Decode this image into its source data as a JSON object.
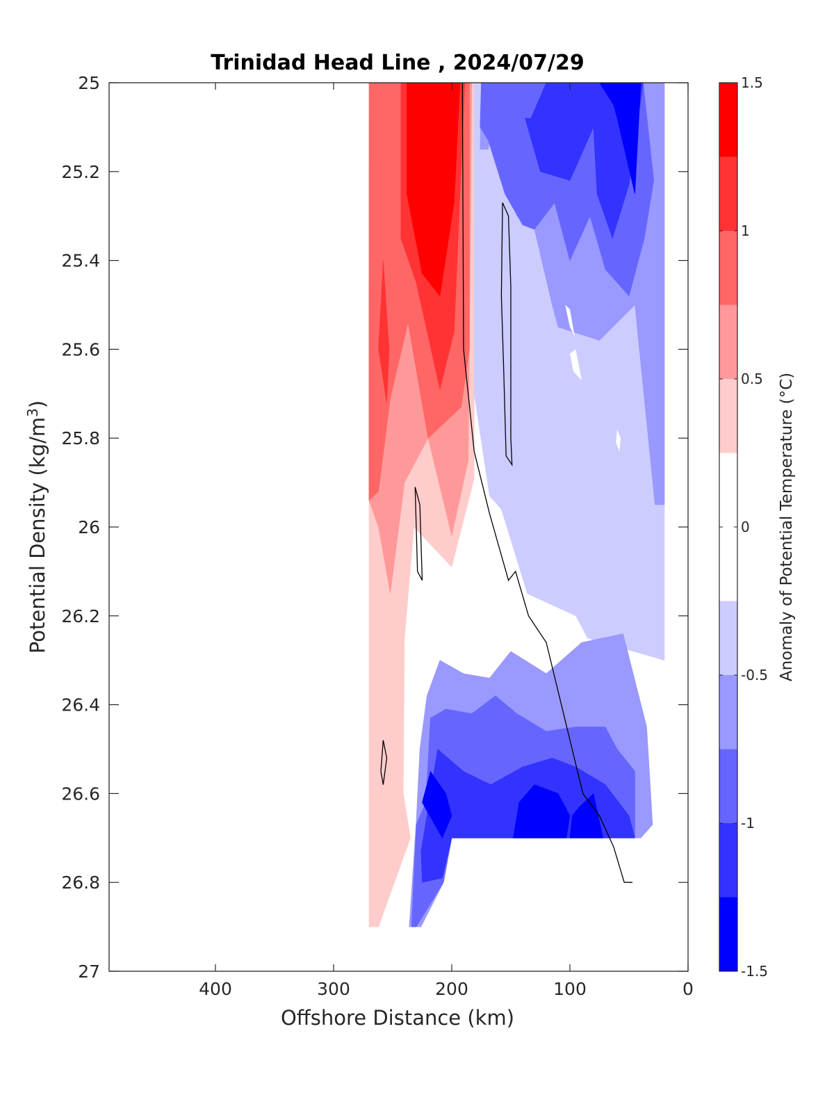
{
  "chart_data": {
    "type": "contour",
    "title": "Trinidad Head Line , 2024/07/29",
    "xlabel": "Offshore Distance (km)",
    "ylabel": "Potential Density (kg/m",
    "ylabel_sup": "3",
    "ylabel_close": ")",
    "xlim": [
      490,
      0
    ],
    "ylim": [
      25,
      27
    ],
    "x_reversed": true,
    "y_reversed": true,
    "x_ticks": [
      400,
      300,
      200,
      100,
      0
    ],
    "y_ticks": [
      25,
      25.2,
      25.4,
      25.6,
      25.8,
      26,
      26.2,
      26.4,
      26.6,
      26.8,
      27
    ],
    "y_tick_labels": [
      "25",
      "25.2",
      "25.4",
      "25.6",
      "25.8",
      "26",
      "26.2",
      "26.4",
      "26.6",
      "26.8",
      "27"
    ],
    "x_tick_labels": [
      "400",
      "300",
      "200",
      "100",
      "0"
    ],
    "grid": false,
    "colorbar": {
      "label": "Anomaly of Potential Temperature (°C)",
      "range": [
        -1.5,
        1.5
      ],
      "ticks": [
        1.5,
        1,
        0.5,
        0,
        -0.5,
        -1,
        -1.5
      ],
      "tick_labels": [
        "1.5",
        "1",
        "0.5",
        "0",
        "-0.5",
        "-1",
        "-1.5"
      ],
      "levels": [
        {
          "range": [
            1.25,
            1.5
          ],
          "color": "#ff0000"
        },
        {
          "range": [
            1.0,
            1.25
          ],
          "color": "#ff3333"
        },
        {
          "range": [
            0.75,
            1.0
          ],
          "color": "#ff6666"
        },
        {
          "range": [
            0.5,
            0.75
          ],
          "color": "#ff9999"
        },
        {
          "range": [
            0.25,
            0.5
          ],
          "color": "#ffcccc"
        },
        {
          "range": [
            -0.25,
            0.25
          ],
          "color": "#ffffff"
        },
        {
          "range": [
            -0.5,
            -0.25
          ],
          "color": "#ccccff"
        },
        {
          "range": [
            -0.75,
            -0.5
          ],
          "color": "#9999ff"
        },
        {
          "range": [
            -1.0,
            -0.75
          ],
          "color": "#6666ff"
        },
        {
          "range": [
            -1.25,
            -1.0
          ],
          "color": "#3333ff"
        },
        {
          "range": [
            -1.5,
            -1.25
          ],
          "color": "#0000ff"
        }
      ]
    },
    "regions": [
      {
        "name": "warm-0.25",
        "color": "#ffcccc",
        "points": [
          [
            270,
            25.077
          ],
          [
            258,
            25.1
          ],
          [
            245,
            25.0
          ],
          [
            181,
            25.0
          ],
          [
            181,
            25.89
          ],
          [
            200,
            26.09
          ],
          [
            232,
            26.0
          ],
          [
            240,
            26.25
          ],
          [
            241,
            26.6
          ],
          [
            235,
            26.7
          ],
          [
            262,
            26.9
          ],
          [
            270,
            26.9
          ]
        ]
      },
      {
        "name": "warm-0.5",
        "color": "#ff9999",
        "points": [
          [
            270,
            25.185
          ],
          [
            253,
            25.24
          ],
          [
            240,
            25.0
          ],
          [
            183,
            25.0
          ],
          [
            186,
            25.85
          ],
          [
            200,
            26.02
          ],
          [
            220,
            25.8
          ],
          [
            240,
            25.9
          ],
          [
            252,
            26.15
          ],
          [
            262,
            26.0
          ],
          [
            270,
            25.94
          ]
        ]
      },
      {
        "name": "warm-0.75",
        "color": "#ff6666",
        "points": [
          [
            270,
            25.94
          ],
          [
            262,
            25.92
          ],
          [
            252,
            25.71
          ],
          [
            237,
            25.54
          ],
          [
            220,
            25.8
          ],
          [
            192,
            25.73
          ],
          [
            185,
            25.6
          ],
          [
            185,
            25.0
          ],
          [
            270,
            25.0
          ]
        ]
      },
      {
        "name": "warm-0.75-left",
        "color": "#ff6666",
        "points": [
          [
            270,
            25.94
          ],
          [
            262,
            25.86
          ],
          [
            253,
            25.63
          ],
          [
            250,
            25.4
          ],
          [
            257,
            25.4
          ],
          [
            262,
            25.29
          ],
          [
            270,
            25.45
          ]
        ]
      },
      {
        "name": "warm-1.0",
        "color": "#ff3333",
        "points": [
          [
            262,
            25.6
          ],
          [
            258,
            25.4
          ],
          [
            253,
            25.6
          ],
          [
            255,
            25.72
          ]
        ]
      },
      {
        "name": "warm-1.0-main",
        "color": "#ff3333",
        "points": [
          [
            243,
            25.0
          ],
          [
            243,
            25.35
          ],
          [
            230,
            25.45
          ],
          [
            210,
            25.69
          ],
          [
            198,
            25.56
          ],
          [
            189,
            25.0
          ]
        ]
      },
      {
        "name": "warm-1.25",
        "color": "#ff0000",
        "points": [
          [
            238,
            25.0
          ],
          [
            238,
            25.25
          ],
          [
            225,
            25.43
          ],
          [
            210,
            25.48
          ],
          [
            198,
            25.27
          ],
          [
            193,
            25.0
          ]
        ]
      },
      {
        "name": "cool-0.25",
        "color": "#ccccff",
        "points": [
          [
            181,
            25.0
          ],
          [
            181,
            25.7
          ],
          [
            168,
            25.93
          ],
          [
            158,
            25.96
          ],
          [
            136,
            26.15
          ],
          [
            95,
            26.2
          ],
          [
            85,
            26.25
          ],
          [
            20,
            26.3
          ],
          [
            20,
            25.0
          ]
        ]
      },
      {
        "name": "cool-0.5",
        "color": "#9999ff",
        "points": [
          [
            175,
            25.0
          ],
          [
            176,
            25.15
          ],
          [
            169,
            25.15
          ],
          [
            165,
            25.05
          ],
          [
            145,
            25.3
          ],
          [
            130,
            25.33
          ],
          [
            115,
            25.5
          ],
          [
            110,
            25.55
          ],
          [
            75,
            25.58
          ],
          [
            45,
            25.5
          ],
          [
            28,
            25.95
          ],
          [
            20,
            25.95
          ],
          [
            20,
            25.0
          ]
        ]
      },
      {
        "name": "cool-0.5-bottom",
        "color": "#9999ff",
        "points": [
          [
            210,
            26.3
          ],
          [
            190,
            26.33
          ],
          [
            168,
            26.34
          ],
          [
            150,
            26.28
          ],
          [
            120,
            26.33
          ],
          [
            90,
            26.26
          ],
          [
            55,
            26.24
          ],
          [
            35,
            26.45
          ],
          [
            30,
            26.67
          ],
          [
            40,
            26.7
          ],
          [
            200,
            26.7
          ],
          [
            207,
            26.8
          ],
          [
            226,
            26.9
          ],
          [
            236,
            26.9
          ],
          [
            230,
            26.66
          ],
          [
            227,
            26.5
          ],
          [
            221,
            26.38
          ]
        ]
      },
      {
        "name": "cool-0.75",
        "color": "#6666ff",
        "points": [
          [
            175,
            25.0
          ],
          [
            176,
            25.1
          ],
          [
            169,
            25.13
          ],
          [
            155,
            25.25
          ],
          [
            140,
            25.32
          ],
          [
            130,
            25.33
          ],
          [
            113,
            25.27
          ],
          [
            100,
            25.4
          ],
          [
            83,
            25.3
          ],
          [
            70,
            25.42
          ],
          [
            50,
            25.48
          ],
          [
            37,
            25.35
          ],
          [
            29,
            25.22
          ],
          [
            38,
            25.0
          ]
        ]
      },
      {
        "name": "cool-0.75-bottom",
        "color": "#6666ff",
        "points": [
          [
            218,
            26.43
          ],
          [
            205,
            26.41
          ],
          [
            183,
            26.42
          ],
          [
            163,
            26.38
          ],
          [
            145,
            26.42
          ],
          [
            120,
            26.46
          ],
          [
            95,
            26.45
          ],
          [
            70,
            26.45
          ],
          [
            60,
            26.5
          ],
          [
            45,
            26.55
          ],
          [
            45,
            26.7
          ],
          [
            200,
            26.7
          ],
          [
            207,
            26.8
          ],
          [
            230,
            26.9
          ],
          [
            234,
            26.9
          ],
          [
            230,
            26.67
          ],
          [
            222,
            26.62
          ]
        ]
      },
      {
        "name": "cool-1.0",
        "color": "#3333ff",
        "points": [
          [
            120,
            25.0
          ],
          [
            133,
            25.08
          ],
          [
            138,
            25.08
          ],
          [
            125,
            25.2
          ],
          [
            100,
            25.22
          ],
          [
            80,
            25.1
          ],
          [
            77,
            25.25
          ],
          [
            64,
            25.35
          ],
          [
            50,
            25.23
          ],
          [
            38,
            25.0
          ]
        ]
      },
      {
        "name": "cool-1.0-bottom",
        "color": "#3333ff",
        "points": [
          [
            212,
            26.5
          ],
          [
            190,
            26.55
          ],
          [
            167,
            26.58
          ],
          [
            140,
            26.54
          ],
          [
            115,
            26.52
          ],
          [
            95,
            26.54
          ],
          [
            70,
            26.58
          ],
          [
            50,
            26.65
          ],
          [
            45,
            26.7
          ],
          [
            200,
            26.7
          ],
          [
            208,
            26.79
          ],
          [
            225,
            26.8
          ],
          [
            226,
            26.73
          ],
          [
            218,
            26.6
          ]
        ]
      },
      {
        "name": "cool-1.25",
        "color": "#0000ff",
        "points": [
          [
            75,
            25.0
          ],
          [
            63,
            25.05
          ],
          [
            60,
            25.08
          ],
          [
            45,
            25.25
          ],
          [
            40,
            25.0
          ]
        ]
      },
      {
        "name": "cool-1.25-bottom-a",
        "color": "#0000ff",
        "points": [
          [
            218,
            26.55
          ],
          [
            205,
            26.6
          ],
          [
            200,
            26.65
          ],
          [
            208,
            26.7
          ],
          [
            225,
            26.62
          ]
        ]
      },
      {
        "name": "cool-1.25-bottom-b",
        "color": "#0000ff",
        "points": [
          [
            143,
            26.62
          ],
          [
            130,
            26.58
          ],
          [
            110,
            26.6
          ],
          [
            100,
            26.65
          ],
          [
            103,
            26.7
          ],
          [
            148,
            26.7
          ]
        ]
      },
      {
        "name": "cool-1.25-bottom-c",
        "color": "#0000ff",
        "points": [
          [
            92,
            26.63
          ],
          [
            80,
            26.6
          ],
          [
            72,
            26.7
          ],
          [
            100,
            26.7
          ],
          [
            98,
            26.65
          ]
        ]
      }
    ],
    "zero_contours": [
      {
        "points": [
          [
            191,
            25.0
          ],
          [
            190,
            25.6
          ],
          [
            181,
            25.83
          ],
          [
            168,
            25.97
          ],
          [
            152,
            26.12
          ],
          [
            146,
            26.1
          ],
          [
            135,
            26.2
          ],
          [
            120,
            26.26
          ],
          [
            89,
            26.6
          ],
          [
            75,
            26.65
          ],
          [
            63,
            26.72
          ],
          [
            54,
            26.8
          ],
          [
            47,
            26.8
          ]
        ]
      },
      {
        "points": [
          [
            157,
            25.27
          ],
          [
            152,
            25.3
          ],
          [
            150,
            25.46
          ],
          [
            150,
            25.8
          ],
          [
            149,
            25.86
          ],
          [
            154,
            25.84
          ],
          [
            156,
            25.65
          ],
          [
            158,
            25.48
          ]
        ]
      },
      {
        "points": [
          [
            231,
            25.91
          ],
          [
            229,
            26.1
          ],
          [
            225,
            26.12
          ],
          [
            227,
            25.95
          ]
        ]
      },
      {
        "points": [
          [
            258,
            26.48
          ],
          [
            255,
            26.52
          ],
          [
            258,
            26.58
          ],
          [
            260,
            26.55
          ]
        ]
      }
    ],
    "white_pockets": [
      {
        "points": [
          [
            104,
            25.5
          ],
          [
            100,
            25.55
          ],
          [
            96,
            25.57
          ],
          [
            100,
            25.51
          ]
        ]
      },
      {
        "points": [
          [
            100,
            25.61
          ],
          [
            95,
            25.6
          ],
          [
            90,
            25.67
          ],
          [
            97,
            25.65
          ]
        ]
      },
      {
        "points": [
          [
            60,
            25.78
          ],
          [
            57,
            25.8
          ],
          [
            58,
            25.83
          ],
          [
            61,
            25.81
          ]
        ]
      }
    ]
  }
}
